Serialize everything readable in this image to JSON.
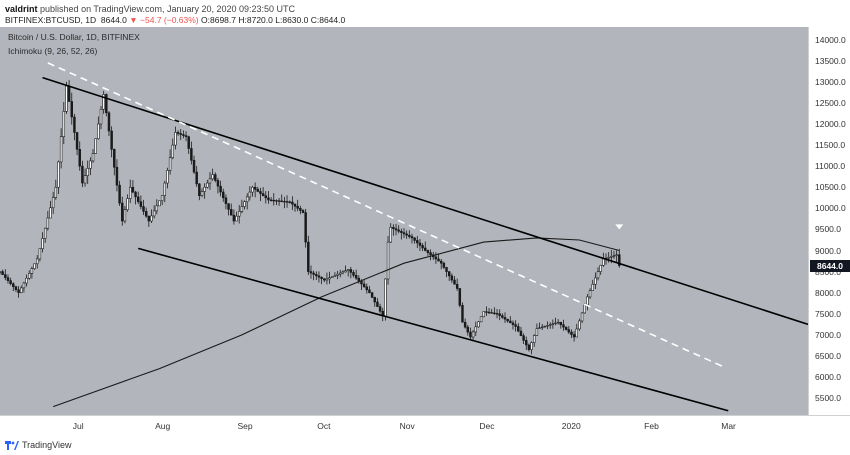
{
  "header": {
    "author": "valdrint",
    "published_text": "published on TradingView.com, January 20, 2020 09:23:50 UTC",
    "symbol": "BITFINEX:BTCUSD, 1D",
    "last": "8644.0",
    "change": "▼ −54.7 (−0.63%)",
    "open": "O:8698.7",
    "high": "H:8720.0",
    "low": "L:8630.0",
    "close": "C:8644.0"
  },
  "legend": {
    "title": "Bitcoin / U.S. Dollar, 1D, BITFINEX",
    "indicator": "Ichimoku (9, 26, 52, 26)"
  },
  "footer": {
    "brand": "TradingView"
  },
  "colors": {
    "background": "#b3b5bd",
    "candle": "#1a1a1a",
    "trendline": "#000000",
    "dashed": "#ffffff",
    "price_label": "#131722"
  },
  "chart_data": {
    "type": "candlestick",
    "title": "",
    "xlabel": "",
    "ylabel": "",
    "ylim": [
      5100,
      14300
    ],
    "x_range": [
      "2019-06-01",
      "2020-03-31"
    ],
    "grid": false,
    "price_ticks": [
      "14000.0",
      "13500.0",
      "13000.0",
      "12500.0",
      "12000.0",
      "11500.0",
      "11000.0",
      "10500.0",
      "10000.0",
      "9500.0",
      "9000.0",
      "8500.0",
      "8000.0",
      "7500.0",
      "7000.0",
      "6500.0",
      "6000.0",
      "5500.0"
    ],
    "time_ticks": [
      {
        "label": "Jul",
        "date": "2019-07-01"
      },
      {
        "label": "Aug",
        "date": "2019-08-01"
      },
      {
        "label": "Sep",
        "date": "2019-09-01"
      },
      {
        "label": "Oct",
        "date": "2019-10-01"
      },
      {
        "label": "Nov",
        "date": "2019-11-01"
      },
      {
        "label": "Dec",
        "date": "2019-12-01"
      },
      {
        "label": "2020",
        "date": "2020-01-01"
      },
      {
        "label": "Feb",
        "date": "2020-02-01"
      },
      {
        "label": "Mar",
        "date": "2020-03-01"
      }
    ],
    "last_price": 8644.0,
    "last_price_label": "8644.0",
    "close_anchors": [
      [
        "2019-06-01",
        8500
      ],
      [
        "2019-06-08",
        8000
      ],
      [
        "2019-06-15",
        8800
      ],
      [
        "2019-06-22",
        10500
      ],
      [
        "2019-06-26",
        12900
      ],
      [
        "2019-06-29",
        11800
      ],
      [
        "2019-07-02",
        10600
      ],
      [
        "2019-07-06",
        11300
      ],
      [
        "2019-07-10",
        12700
      ],
      [
        "2019-07-13",
        11400
      ],
      [
        "2019-07-17",
        9700
      ],
      [
        "2019-07-20",
        10500
      ],
      [
        "2019-07-27",
        9700
      ],
      [
        "2019-08-01",
        10300
      ],
      [
        "2019-08-06",
        11800
      ],
      [
        "2019-08-10",
        11700
      ],
      [
        "2019-08-15",
        10300
      ],
      [
        "2019-08-20",
        10800
      ],
      [
        "2019-08-28",
        9700
      ],
      [
        "2019-09-04",
        10500
      ],
      [
        "2019-09-10",
        10200
      ],
      [
        "2019-09-18",
        10150
      ],
      [
        "2019-09-23",
        9900
      ],
      [
        "2019-09-25",
        8500
      ],
      [
        "2019-10-01",
        8300
      ],
      [
        "2019-10-10",
        8550
      ],
      [
        "2019-10-18",
        8000
      ],
      [
        "2019-10-23",
        7450
      ],
      [
        "2019-10-25",
        9200
      ],
      [
        "2019-10-26",
        9550
      ],
      [
        "2019-11-03",
        9300
      ],
      [
        "2019-11-08",
        9000
      ],
      [
        "2019-11-14",
        8700
      ],
      [
        "2019-11-20",
        8100
      ],
      [
        "2019-11-22",
        7300
      ],
      [
        "2019-11-25",
        6950
      ],
      [
        "2019-11-30",
        7550
      ],
      [
        "2019-12-05",
        7500
      ],
      [
        "2019-12-12",
        7200
      ],
      [
        "2019-12-17",
        6650
      ],
      [
        "2019-12-20",
        7150
      ],
      [
        "2019-12-28",
        7300
      ],
      [
        "2020-01-03",
        6950
      ],
      [
        "2020-01-08",
        7900
      ],
      [
        "2020-01-14",
        8800
      ],
      [
        "2020-01-19",
        8900
      ],
      [
        "2020-01-20",
        8644
      ]
    ],
    "ichimoku_line": [
      [
        "2019-06-21",
        5300
      ],
      [
        "2019-07-31",
        6200
      ],
      [
        "2019-08-31",
        7000
      ],
      [
        "2019-09-30",
        7900
      ],
      [
        "2019-10-31",
        8700
      ],
      [
        "2019-11-30",
        9200
      ],
      [
        "2019-12-20",
        9300
      ],
      [
        "2020-01-05",
        9250
      ],
      [
        "2020-01-20",
        9000
      ]
    ],
    "trend_lines": [
      {
        "name": "upper-resistance",
        "from": [
          "2019-06-17",
          13100
        ],
        "to": [
          "2020-03-31",
          7250
        ]
      },
      {
        "name": "lower-support",
        "from": [
          "2019-07-23",
          9050
        ],
        "to": [
          "2020-03-01",
          5200
        ]
      },
      {
        "name": "dashed-midline",
        "from": [
          "2019-06-19",
          13450
        ],
        "to": [
          "2020-02-28",
          6250
        ],
        "style": "dashed"
      }
    ],
    "marker": {
      "date": "2020-01-20",
      "price": 9500,
      "shape": "down-triangle"
    }
  }
}
